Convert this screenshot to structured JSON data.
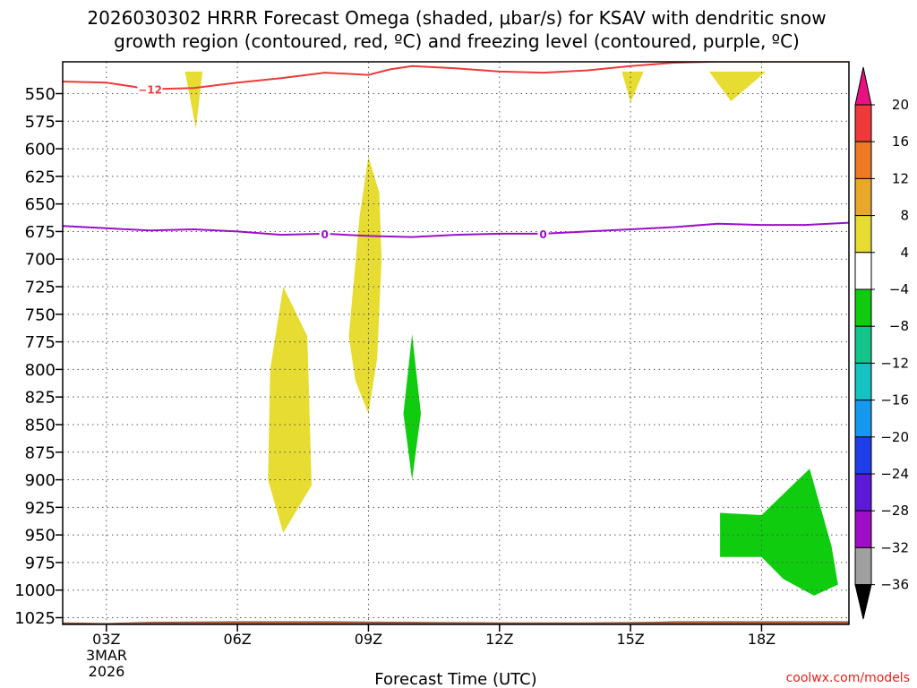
{
  "chart_data": {
    "type": "heatmap",
    "title_line1": "2026030302 HRRR Forecast Omega (shaded, μbar/s) for KSAV with dendritic snow",
    "title_line2": "growth region (contoured, red, ºC) and freezing level (contoured, purple, ºC)",
    "xlabel": "Forecast Time (UTC)",
    "credit": "coolwx.com/models",
    "x_range": [
      2,
      20
    ],
    "y_range": [
      530,
      1035
    ],
    "y_ticks": [
      550,
      575,
      600,
      625,
      650,
      675,
      700,
      725,
      750,
      775,
      800,
      825,
      850,
      875,
      900,
      925,
      950,
      975,
      1000,
      1025
    ],
    "y_tick_labels": [
      "550",
      "575",
      "600",
      "625",
      "650",
      "675",
      "700",
      "725",
      "750",
      "775",
      "800",
      "825",
      "850",
      "875",
      "900",
      "925",
      "950",
      "975",
      "1000",
      "1025"
    ],
    "x_ticks": [
      3,
      6,
      9,
      12,
      15,
      18
    ],
    "x_tick_labels": [
      "03Z",
      "06Z",
      "09Z",
      "12Z",
      "15Z",
      "18Z"
    ],
    "date_line1": "3MAR",
    "date_line2": "2026",
    "grid": true,
    "colorbar": {
      "levels": [
        20,
        16,
        12,
        8,
        4,
        -4,
        -8,
        -12,
        -16,
        -20,
        -24,
        -28,
        -32,
        -36
      ],
      "labels": [
        "20",
        "16",
        "12",
        "8",
        "4",
        "−4",
        "−8",
        "−12",
        "−16",
        "−20",
        "−24",
        "−28",
        "−32",
        "−36"
      ],
      "colors": [
        "#e8117f",
        "#ee3a3a",
        "#ee7a23",
        "#e8a82a",
        "#e6dc32",
        "#ffffff",
        "#0fcc0f",
        "#14c48a",
        "#15c2c2",
        "#1599ee",
        "#1f3ee8",
        "#5a1ad6",
        "#9e0ec6",
        "#a0a0a0",
        "#000000"
      ]
    },
    "shaded_regions": [
      {
        "name": "positive-omega-1",
        "color": "#e6dc32",
        "points": [
          [
            4.8,
            530
          ],
          [
            5.05,
            582
          ],
          [
            5.2,
            530
          ]
        ]
      },
      {
        "name": "positive-omega-2",
        "color": "#e6dc32",
        "points": [
          [
            14.8,
            530
          ],
          [
            15.0,
            558
          ],
          [
            15.3,
            530
          ]
        ]
      },
      {
        "name": "positive-omega-3",
        "color": "#e6dc32",
        "points": [
          [
            16.8,
            530
          ],
          [
            17.3,
            557
          ],
          [
            18.1,
            530
          ]
        ]
      },
      {
        "name": "positive-omega-4",
        "color": "#e6dc32",
        "points": [
          [
            9.0,
            607
          ],
          [
            9.25,
            640
          ],
          [
            9.3,
            700
          ],
          [
            9.2,
            790
          ],
          [
            9.0,
            840
          ],
          [
            8.7,
            810
          ],
          [
            8.55,
            770
          ],
          [
            8.8,
            660
          ]
        ]
      },
      {
        "name": "positive-omega-5",
        "color": "#e6dc32",
        "points": [
          [
            7.05,
            725
          ],
          [
            7.6,
            770
          ],
          [
            7.7,
            905
          ],
          [
            7.05,
            948
          ],
          [
            6.7,
            900
          ],
          [
            6.75,
            800
          ]
        ]
      },
      {
        "name": "negative-omega-1",
        "color": "#0fcc0f",
        "points": [
          [
            10.0,
            768
          ],
          [
            10.2,
            840
          ],
          [
            10.0,
            900
          ],
          [
            9.8,
            840
          ]
        ]
      },
      {
        "name": "negative-omega-2",
        "color": "#0fcc0f",
        "points": [
          [
            17.05,
            930
          ],
          [
            18.0,
            932
          ],
          [
            19.1,
            890
          ],
          [
            19.6,
            960
          ],
          [
            19.75,
            995
          ],
          [
            19.2,
            1005
          ],
          [
            18.5,
            990
          ],
          [
            18.0,
            970
          ],
          [
            17.05,
            970
          ]
        ]
      }
    ],
    "terrain": {
      "color": "#a65e36",
      "top_points": [
        [
          2,
          1029.5
        ],
        [
          3,
          1030
        ],
        [
          4,
          1029
        ],
        [
          6,
          1028.5
        ],
        [
          8,
          1028.5
        ],
        [
          10,
          1029
        ],
        [
          12,
          1029.5
        ],
        [
          14,
          1029.5
        ],
        [
          15.5,
          1029
        ],
        [
          16,
          1028.5
        ],
        [
          18,
          1028.5
        ],
        [
          20,
          1028.5
        ]
      ]
    },
    "contours": [
      {
        "name": "dendritic-snow-contour",
        "color": "#ee3a3a",
        "label": "−12",
        "label_at": [
          4.0,
          546
        ],
        "points": [
          [
            2.0,
            539
          ],
          [
            3.0,
            540
          ],
          [
            4.0,
            546
          ],
          [
            5.0,
            545
          ],
          [
            6.0,
            540
          ],
          [
            7.0,
            536
          ],
          [
            8.0,
            531
          ],
          [
            9.0,
            533
          ],
          [
            9.5,
            528
          ],
          [
            10.0,
            525
          ],
          [
            11.0,
            527
          ],
          [
            12.0,
            530
          ],
          [
            13.0,
            531
          ],
          [
            14.0,
            529
          ],
          [
            15.0,
            525
          ],
          [
            16.0,
            522
          ],
          [
            17.0,
            521
          ],
          [
            18.0,
            521
          ],
          [
            20.0,
            521
          ]
        ]
      },
      {
        "name": "freezing-level-contour",
        "color": "#9b10c8",
        "label": "0",
        "label_at": [
          8.0,
          677
        ],
        "label2": "0",
        "label2_at": [
          13.0,
          677
        ],
        "points": [
          [
            2.0,
            670
          ],
          [
            3.0,
            672
          ],
          [
            4.0,
            674
          ],
          [
            5.0,
            673
          ],
          [
            6.0,
            675
          ],
          [
            7.0,
            678
          ],
          [
            8.0,
            677
          ],
          [
            9.0,
            679
          ],
          [
            10.0,
            680
          ],
          [
            11.0,
            678
          ],
          [
            12.0,
            677
          ],
          [
            13.0,
            677
          ],
          [
            14.0,
            675
          ],
          [
            15.0,
            673
          ],
          [
            16.0,
            671
          ],
          [
            17.0,
            668
          ],
          [
            18.0,
            669
          ],
          [
            19.0,
            669
          ],
          [
            20.0,
            667
          ]
        ]
      }
    ]
  }
}
